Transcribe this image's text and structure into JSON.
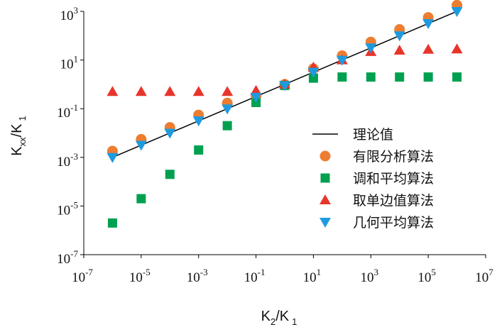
{
  "chart_data": {
    "type": "scatter",
    "title": "",
    "x_scale": "log",
    "y_scale": "log",
    "xlim": [
      1e-07,
      10000000.0
    ],
    "ylim": [
      1e-07,
      1000.0
    ],
    "xlabel": {
      "base": "K",
      "sub": "2",
      "sep": "/",
      "base2": "K",
      "sub2": "1"
    },
    "ylabel": {
      "base": "K",
      "sub": "xx",
      "sep": "/",
      "base2": "K",
      "sub2": "1"
    },
    "x_ticks": [
      {
        "exp": -7,
        "base": "10",
        "sup": "-7"
      },
      {
        "exp": -5,
        "base": "10",
        "sup": "-5"
      },
      {
        "exp": -3,
        "base": "10",
        "sup": "-3"
      },
      {
        "exp": -1,
        "base": "10",
        "sup": "-1"
      },
      {
        "exp": 1,
        "base": "10",
        "sup": "1"
      },
      {
        "exp": 3,
        "base": "10",
        "sup": "3"
      },
      {
        "exp": 5,
        "base": "10",
        "sup": "5"
      },
      {
        "exp": 7,
        "base": "10",
        "sup": "7"
      }
    ],
    "y_ticks": [
      {
        "exp": -7,
        "base": "10",
        "sup": "-7"
      },
      {
        "exp": -5,
        "base": "10",
        "sup": "-5"
      },
      {
        "exp": -3,
        "base": "10",
        "sup": "-3"
      },
      {
        "exp": -1,
        "base": "10",
        "sup": "-1"
      },
      {
        "exp": 1,
        "base": "10",
        "sup": "1"
      },
      {
        "exp": 3,
        "base": "10",
        "sup": "3"
      }
    ],
    "legend_position": "lower-right",
    "series": [
      {
        "name": "理论值",
        "kind": "line",
        "color": "#000000",
        "x": [
          1e-06,
          1000000.0
        ],
        "y": [
          0.001,
          1000.0
        ]
      },
      {
        "name": "有限分析算法",
        "kind": "circle",
        "color": "#ED7D31",
        "x": [
          1e-06,
          1e-05,
          0.0001,
          0.001,
          0.01,
          0.1,
          1,
          10,
          100,
          1000,
          10000,
          100000,
          1000000
        ],
        "y": [
          0.0018,
          0.0055,
          0.017,
          0.055,
          0.17,
          0.33,
          1.0,
          4.4,
          15,
          55,
          180,
          560,
          1800
        ]
      },
      {
        "name": "调和平均算法",
        "kind": "square",
        "color": "#00A050",
        "x": [
          1e-06,
          1e-05,
          0.0001,
          0.001,
          0.01,
          0.1,
          1,
          10,
          100,
          1000,
          10000,
          100000,
          1000000
        ],
        "y": [
          2e-06,
          2e-05,
          0.0002,
          0.002,
          0.02,
          0.18,
          0.9,
          1.8,
          2,
          2,
          2,
          2,
          2
        ]
      },
      {
        "name": "取单边值算法",
        "kind": "triangle-up",
        "color": "#E8352B",
        "x": [
          1e-06,
          1e-05,
          0.0001,
          0.001,
          0.01,
          0.1,
          1,
          10,
          100,
          1000,
          10000,
          100000,
          1000000
        ],
        "y": [
          0.5,
          0.5,
          0.5,
          0.5,
          0.5,
          0.55,
          1.0,
          5,
          10,
          22,
          25,
          27,
          28
        ]
      },
      {
        "name": "几何平均算法",
        "kind": "triangle-down",
        "color": "#1E9BE0",
        "x": [
          1e-06,
          1e-05,
          0.0001,
          0.001,
          0.01,
          0.1,
          1,
          10,
          100,
          1000,
          10000,
          100000,
          1000000
        ],
        "y": [
          0.001,
          0.0032,
          0.01,
          0.032,
          0.1,
          0.3,
          0.9,
          3.2,
          10,
          32,
          100,
          320,
          1000
        ]
      }
    ]
  }
}
